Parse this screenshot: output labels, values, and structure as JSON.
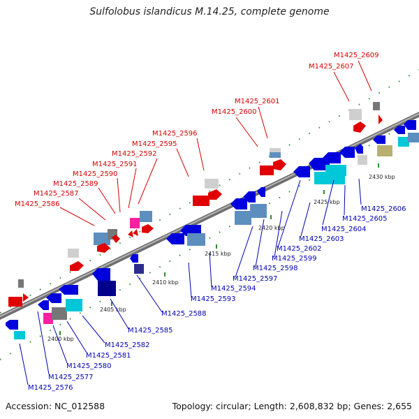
{
  "title": "Sulfolobus islandicus M.14.25, complete genome",
  "footer": {
    "accession": "Accession: NC_012588",
    "summary": "Topology: circular; Length: 2,608,832 bp; Genes: 2,655"
  },
  "colors": {
    "backbone": "#8a8a8a",
    "tick": "#2e8b2e",
    "top_labels": "#d40000",
    "bottom_labels": "#0000b0"
  },
  "ruler": [
    "2400 kbp",
    "2405 kbp",
    "2410 kbp",
    "2415 kbp",
    "2420 kbp",
    "2425 kbp",
    "2430 kbp"
  ],
  "top_labels": [
    "M1425_2609",
    "M1425_2607",
    "M1425_2601",
    "M1425_2600",
    "M1425_2596",
    "M1425_2595",
    "M1425_2592",
    "M1425_2591",
    "M1425_2590",
    "M1425_2589",
    "M1425_2587",
    "M1425_2586"
  ],
  "bottom_labels": [
    "M1425_2606",
    "M1425_2605",
    "M1425_2604",
    "M1425_2603",
    "M1425_2602",
    "M1425_2599",
    "M1425_2598",
    "M1425_2597",
    "M1425_2594",
    "M1425_2593",
    "M1425_2588",
    "M1425_2585",
    "M1425_2582",
    "M1425_2581",
    "M1425_2580",
    "M1425_2577",
    "M1425_2576"
  ]
}
